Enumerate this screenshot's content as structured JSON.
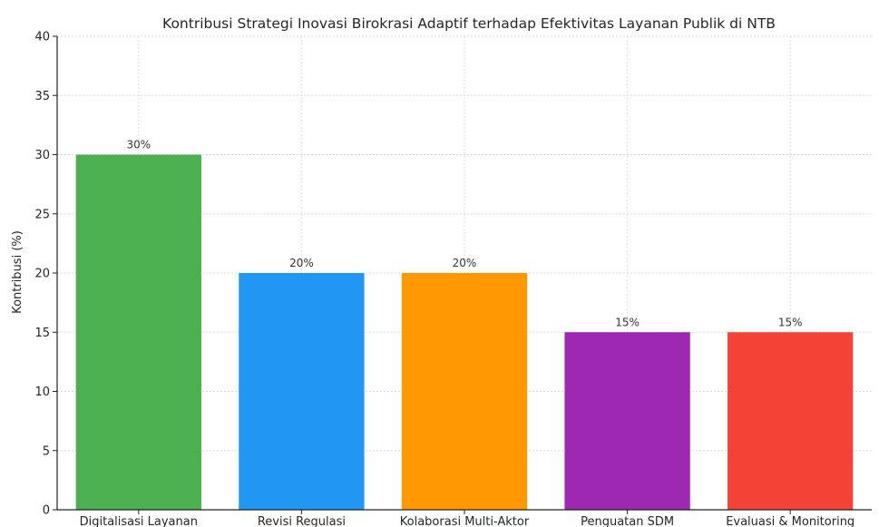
{
  "chart_data": {
    "type": "bar",
    "title": "Kontribusi Strategi Inovasi Birokrasi Adaptif terhadap Efektivitas Layanan Publik di NTB",
    "xlabel": "",
    "ylabel": "Kontribusi (%)",
    "ylim": [
      0,
      40
    ],
    "yticks": [
      0,
      5,
      10,
      15,
      20,
      25,
      30,
      35,
      40
    ],
    "categories": [
      "Digitalisasi Layanan",
      "Revisi Regulasi",
      "Kolaborasi Multi-Aktor",
      "Penguatan SDM",
      "Evaluasi & Monitoring"
    ],
    "values": [
      30,
      20,
      20,
      15,
      15
    ],
    "data_labels": [
      "30%",
      "20%",
      "20%",
      "15%",
      "15%"
    ],
    "colors": [
      "#4caf50",
      "#2196f3",
      "#ff9800",
      "#9c27b0",
      "#f44336"
    ],
    "grid": true
  }
}
